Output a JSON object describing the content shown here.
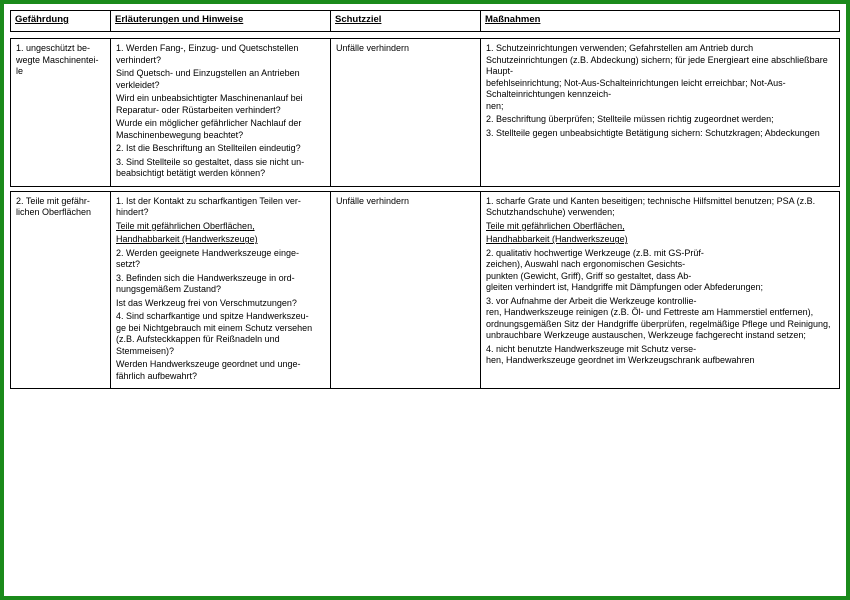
{
  "headers": {
    "c1": "Gefährdung",
    "c2": "Erläuterungen und Hinweise",
    "c3": "Schutzziel",
    "c4": "Maßnahmen"
  },
  "rows": [
    {
      "gefaehrdung": "1. ungeschützt be-\nwegte Maschinentei-\nle",
      "schutzziel": "Unfälle verhindern",
      "erlaeuterungen": [
        {
          "t": "1. Werden Fang-, Einzug- und Quetschstellen verhindert?"
        },
        {
          "t": "Sind Quetsch- und Einzugstellen an Antrieben verkleidet?"
        },
        {
          "t": "Wird ein unbeabsichtigter Maschinenanlauf bei Reparatur- oder Rüstarbeiten verhindert?"
        },
        {
          "t": "Wurde ein möglicher gefährlicher Nachlauf der Maschinenbewegung beachtet?"
        },
        {
          "t": ""
        },
        {
          "t": "2. Ist die Beschriftung an Stellteilen eindeutig?"
        },
        {
          "t": ""
        },
        {
          "t": "3. Sind Stellteile so gestaltet, dass sie nicht un-\nbeabsichtigt betätigt werden können?"
        }
      ],
      "massnahmen": [
        {
          "t": "1. Schutzeinrichtungen verwenden; Gefahrstellen am Antrieb durch Schutzeinrichtungen (z.B. Abdeckung) sichern; für jede Energieart eine abschließbare Haupt-\nbefehlseinrichtung; Not-Aus-Schalteinrichtungen leicht erreichbar; Not-Aus-Schalteinrichtungen kennzeich-\nnen;"
        },
        {
          "t": ""
        },
        {
          "t": ""
        },
        {
          "t": "2. Beschriftung überprüfen; Stellteile müssen richtig zugeordnet werden;"
        },
        {
          "t": ""
        },
        {
          "t": "3. Stellteile gegen unbeabsichtigte Betätigung sichern: Schutzkragen; Abdeckungen"
        }
      ]
    },
    {
      "gefaehrdung": "2. Teile mit gefähr-\nlichen Oberflächen",
      "schutzziel": "Unfälle verhindern",
      "erlaeuterungen": [
        {
          "t": "1. Ist der Kontakt zu scharfkantigen Teilen ver-\nhindert?"
        },
        {
          "t": ""
        },
        {
          "t": "Teile mit gefährlichen Oberflächen,",
          "u": true
        },
        {
          "t": "Handhabbarkeit (Handwerkszeuge)",
          "u": true
        },
        {
          "t": "2. Werden geeignete Handwerkszeuge einge-\nsetzt?"
        },
        {
          "t": ""
        },
        {
          "t": ""
        },
        {
          "t": ""
        },
        {
          "t": "3. Befinden sich die Handwerkszeuge in ord-\nnungsgemäßem Zustand?"
        },
        {
          "t": "Ist das Werkzeug frei von Verschmutzungen?"
        },
        {
          "t": ""
        },
        {
          "t": ""
        },
        {
          "t": ""
        },
        {
          "t": "4. Sind scharfkantige und spitze Handwerkszeu-\nge bei Nichtgebrauch mit einem Schutz versehen (z.B. Aufsteckkappen für Reißnadeln und Stemmeisen)?"
        },
        {
          "t": "Werden Handwerkszeuge geordnet und unge-\nfährlich aufbewahrt?"
        }
      ],
      "massnahmen": [
        {
          "t": "1. scharfe Grate und Kanten beseitigen; technische Hilfsmittel benutzen; PSA (z.B. Schutzhandschuhe) verwenden;"
        },
        {
          "t": ""
        },
        {
          "t": "Teile mit gefährlichen Oberflächen,",
          "u": true
        },
        {
          "t": "Handhabbarkeit (Handwerkszeuge)",
          "u": true
        },
        {
          "t": "2. qualitativ hochwertige Werkzeuge (z.B. mit GS-Prüf-\nzeichen), Auswahl nach ergonomischen Gesichts-\npunkten (Gewicht, Griff), Griff so gestaltet, dass Ab-\ngleiten verhindert ist, Handgriffe mit Dämpfungen oder Abfederungen;"
        },
        {
          "t": ""
        },
        {
          "t": "3. vor Aufnahme der Arbeit die Werkzeuge kontrollie-\nren, Handwerkszeuge reinigen (z.B. Öl- und Fettreste am Hammerstiel entfernen), ordnungsgemäßen Sitz der Handgriffe überprüfen, regelmäßige Pflege und Reinigung, unbrauchbare Werkzeuge austauschen, Werkzeuge fachgerecht instand setzen;"
        },
        {
          "t": ""
        },
        {
          "t": "4. nicht benutzte Handwerkszeuge mit Schutz verse-\nhen, Handwerkszeuge geordnet im Werkzeugschrank aufbewahren"
        }
      ]
    }
  ]
}
